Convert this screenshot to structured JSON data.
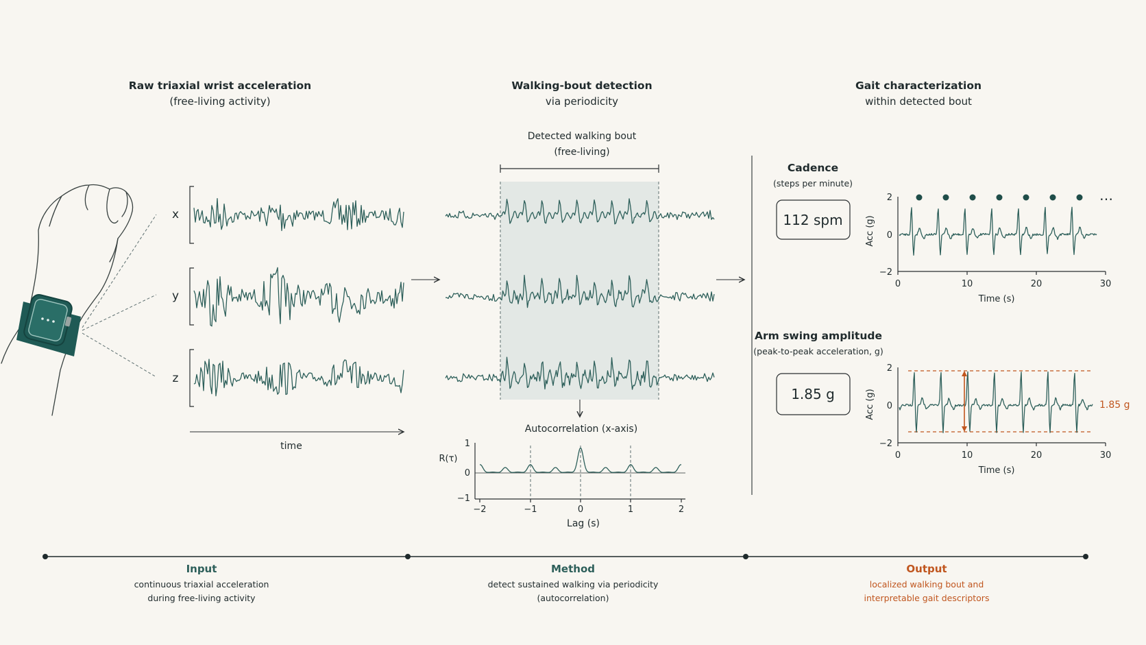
{
  "sections": {
    "raw": {
      "title": "Raw triaxial wrist acceleration",
      "subtitle": "(free-living activity)"
    },
    "detect": {
      "title": "Walking-bout detection",
      "subtitle": "via periodicity"
    },
    "gait": {
      "title": "Gait characterization",
      "subtitle": "within detected bout"
    }
  },
  "axes_labels": {
    "x": "x",
    "y": "y",
    "z": "z",
    "time": "time"
  },
  "bout": {
    "label_1": "Detected walking bout",
    "label_2": "(free-living)"
  },
  "autocorr": {
    "title": "Autocorrelation (x-axis)",
    "ylabel": "R(τ)",
    "xlabel": "Lag (s)",
    "yticks": [
      "1",
      "0",
      "−1"
    ],
    "xticks": [
      "−2",
      "−1",
      "0",
      "1",
      "2"
    ]
  },
  "cadence": {
    "title": "Cadence",
    "subtitle": "(steps per minute)",
    "value": "112 spm",
    "chart": {
      "ylabel": "Acc (g)",
      "xlabel": "Time (s)",
      "yticks": [
        "2",
        "0",
        "−2"
      ],
      "xticks": [
        "0",
        "10",
        "20",
        "30"
      ],
      "more": "…"
    }
  },
  "arm_swing": {
    "title": "Arm swing amplitude",
    "subtitle": "(peak-to-peak acceleration, g)",
    "value": "1.85 g",
    "annotation": "1.85 g",
    "chart": {
      "ylabel": "Acc (g)",
      "xlabel": "Time (s)",
      "yticks": [
        "2",
        "0",
        "−2"
      ],
      "xticks": [
        "0",
        "10",
        "20",
        "30"
      ]
    }
  },
  "pipeline": {
    "input": {
      "title": "Input",
      "line1": "continuous triaxial acceleration",
      "line2": "during free-living activity"
    },
    "method": {
      "title": "Method",
      "line1": "detect sustained walking via periodicity",
      "line2": "(autocorrelation)"
    },
    "output": {
      "title": "Output",
      "line1": "localized walking bout and",
      "line2": "interpretable gait descriptors"
    }
  },
  "colors": {
    "background": "#f8f6f1",
    "signal": "#2d5f5a",
    "watch": "#1f5a55",
    "bout_shade": "#e3e8e5",
    "accent": "#c0561f",
    "text": "#1f2a2c"
  },
  "icons": {
    "watch": "smartwatch-icon",
    "hand": "wrist-hand-illustration"
  }
}
